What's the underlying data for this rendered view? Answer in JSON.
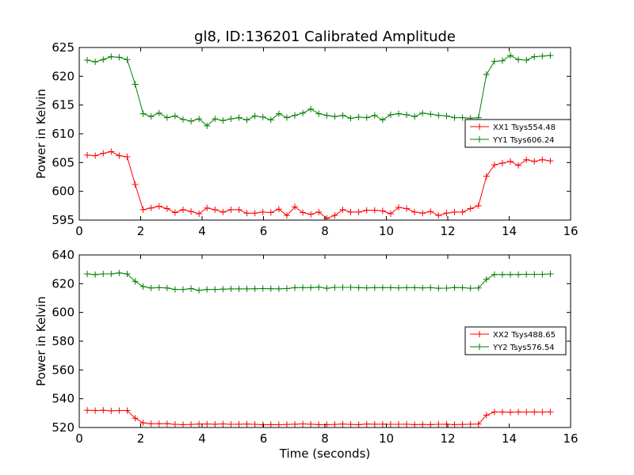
{
  "chart_data": [
    {
      "type": "line",
      "title": "gl8, ID:136201 Calibrated Amplitude",
      "xlabel": "",
      "ylabel": "Power in Kelvin",
      "xlim": [
        0,
        16
      ],
      "ylim": [
        595,
        625
      ],
      "xticks": [
        0,
        2,
        4,
        6,
        8,
        10,
        12,
        14,
        16
      ],
      "yticks": [
        595,
        600,
        605,
        610,
        615,
        620,
        625
      ],
      "legend_position": "center-right",
      "x": [
        0.26,
        0.52,
        0.78,
        1.04,
        1.3,
        1.56,
        1.82,
        2.08,
        2.34,
        2.6,
        2.86,
        3.12,
        3.38,
        3.64,
        3.9,
        4.16,
        4.42,
        4.68,
        4.94,
        5.2,
        5.46,
        5.72,
        5.98,
        6.24,
        6.5,
        6.76,
        7.02,
        7.28,
        7.54,
        7.8,
        8.06,
        8.32,
        8.58,
        8.84,
        9.1,
        9.36,
        9.62,
        9.88,
        10.14,
        10.4,
        10.66,
        10.92,
        11.18,
        11.44,
        11.7,
        11.96,
        12.22,
        12.48,
        12.74,
        13.0,
        13.26,
        13.52,
        13.78,
        14.04,
        14.3,
        14.56,
        14.82,
        15.08,
        15.34
      ],
      "series": [
        {
          "name": "XX1 Tsys554.48",
          "color": "#ff0000",
          "values": [
            606.3,
            606.2,
            606.6,
            606.9,
            606.2,
            606.0,
            601.2,
            596.8,
            597.1,
            597.4,
            597.0,
            596.3,
            596.8,
            596.5,
            596.1,
            597.1,
            596.8,
            596.4,
            596.8,
            596.8,
            596.2,
            596.2,
            596.4,
            596.3,
            596.9,
            595.8,
            597.3,
            596.3,
            596.0,
            596.4,
            595.3,
            595.8,
            596.8,
            596.4,
            596.4,
            596.7,
            596.7,
            596.6,
            596.1,
            597.2,
            597.0,
            596.4,
            596.2,
            596.5,
            595.8,
            596.2,
            596.4,
            596.4,
            597.0,
            597.5,
            602.6,
            604.6,
            604.9,
            605.2,
            604.5,
            605.5,
            605.2,
            605.5,
            605.3
          ],
          "markers": "plus"
        },
        {
          "name": "YY1 Tsys606.24",
          "color": "#008000",
          "values": [
            622.8,
            622.5,
            622.9,
            623.4,
            623.3,
            622.9,
            618.6,
            613.5,
            613.0,
            613.6,
            612.8,
            613.1,
            612.5,
            612.2,
            612.6,
            611.4,
            612.6,
            612.3,
            612.6,
            612.8,
            612.4,
            613.1,
            612.9,
            612.4,
            613.5,
            612.8,
            613.2,
            613.6,
            614.3,
            613.5,
            613.2,
            613.0,
            613.2,
            612.7,
            612.9,
            612.8,
            613.2,
            612.4,
            613.3,
            613.5,
            613.3,
            613.0,
            613.6,
            613.4,
            613.2,
            613.1,
            612.8,
            612.8,
            612.7,
            612.8,
            620.3,
            622.6,
            622.7,
            623.6,
            622.9,
            622.8,
            623.4,
            623.5,
            623.6
          ],
          "markers": "plus"
        }
      ]
    },
    {
      "type": "line",
      "title": "",
      "xlabel": "Time (seconds)",
      "ylabel": "Power in Kelvin",
      "xlim": [
        0,
        16
      ],
      "ylim": [
        520,
        640
      ],
      "xticks": [
        0,
        2,
        4,
        6,
        8,
        10,
        12,
        14,
        16
      ],
      "yticks": [
        520,
        540,
        560,
        580,
        600,
        620,
        640
      ],
      "legend_position": "center-right",
      "x": [
        0.26,
        0.52,
        0.78,
        1.04,
        1.3,
        1.56,
        1.82,
        2.08,
        2.34,
        2.6,
        2.86,
        3.12,
        3.38,
        3.64,
        3.9,
        4.16,
        4.42,
        4.68,
        4.94,
        5.2,
        5.46,
        5.72,
        5.98,
        6.24,
        6.5,
        6.76,
        7.02,
        7.28,
        7.54,
        7.8,
        8.06,
        8.32,
        8.58,
        8.84,
        9.1,
        9.36,
        9.62,
        9.88,
        10.14,
        10.4,
        10.66,
        10.92,
        11.18,
        11.44,
        11.7,
        11.96,
        12.22,
        12.48,
        12.74,
        13.0,
        13.26,
        13.52,
        13.78,
        14.04,
        14.3,
        14.56,
        14.82,
        15.08,
        15.34
      ],
      "series": [
        {
          "name": "XX2 Tsys488.65",
          "color": "#ff0000",
          "values": [
            532.0,
            531.8,
            532.0,
            531.6,
            531.8,
            531.8,
            526.5,
            523.2,
            522.6,
            522.6,
            522.7,
            522.2,
            522.0,
            522.1,
            522.4,
            522.4,
            522.3,
            522.5,
            522.2,
            522.3,
            522.4,
            522.2,
            521.9,
            522.0,
            521.9,
            522.1,
            522.3,
            522.5,
            522.3,
            522.0,
            522.0,
            522.1,
            522.4,
            522.1,
            522.0,
            522.4,
            522.3,
            522.3,
            522.2,
            522.2,
            522.3,
            522.0,
            522.1,
            522.0,
            522.2,
            522.3,
            522.0,
            522.1,
            522.3,
            522.4,
            528.6,
            530.8,
            530.8,
            530.6,
            530.8,
            530.7,
            530.8,
            530.7,
            530.9
          ],
          "markers": "plus"
        },
        {
          "name": "YY2 Tsys576.54",
          "color": "#008000",
          "values": [
            626.8,
            626.3,
            626.8,
            626.8,
            627.5,
            626.8,
            621.6,
            618.0,
            617.0,
            617.2,
            617.0,
            616.0,
            616.0,
            616.6,
            615.4,
            616.0,
            616.0,
            616.2,
            616.4,
            616.4,
            616.4,
            616.5,
            616.6,
            616.5,
            616.4,
            616.6,
            617.2,
            617.2,
            617.2,
            617.6,
            616.8,
            617.4,
            617.4,
            617.4,
            617.2,
            617.1,
            617.2,
            617.2,
            617.2,
            617.1,
            617.2,
            617.2,
            617.1,
            617.2,
            616.8,
            616.9,
            617.3,
            617.2,
            616.8,
            617.0,
            623.0,
            626.4,
            626.4,
            626.4,
            626.4,
            626.5,
            626.5,
            626.5,
            626.8
          ],
          "markers": "plus"
        }
      ]
    }
  ]
}
